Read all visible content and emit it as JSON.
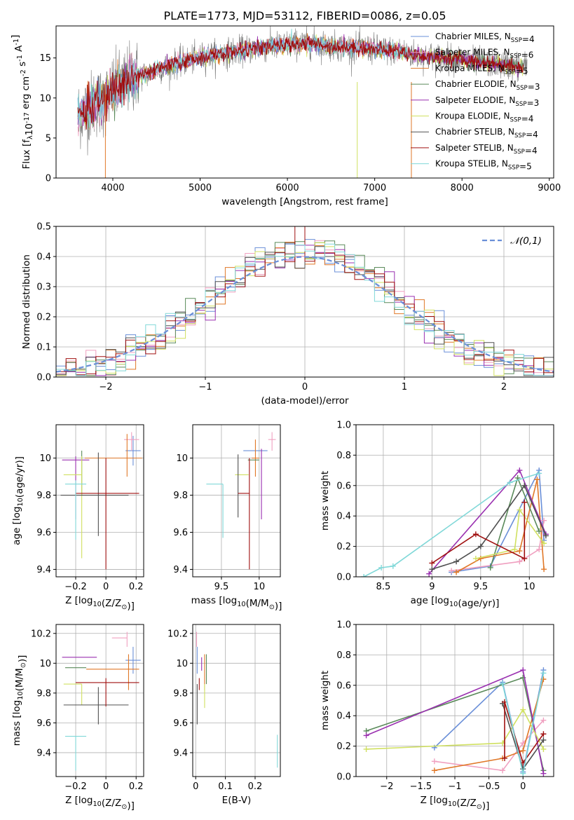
{
  "colors": {
    "chabrier_miles": "#6a8fd8",
    "salpeter_miles": "#f0a0c0",
    "kroupa_miles": "#e07828",
    "chabrier_elodie": "#5a8a5a",
    "salpeter_elodie": "#9a30b0",
    "kroupa_elodie": "#d0e060",
    "chabrier_stelib": "#505050",
    "salpeter_stelib": "#a01010",
    "kroupa_stelib": "#80d8d8",
    "gauss": "#6a8fd8"
  },
  "chart_data": [
    {
      "id": "spectrum",
      "type": "line",
      "title": "PLATE=1773, MJD=53112, FIBERID=0086, z=0.05",
      "xlabel": "wavelength [Angstrom, rest frame]",
      "ylabel": "Flux [f$_\\lambda$10$^{-17}$ erg cm$^{-2}$ s$^{-1}$ A$^{-1}$]",
      "xlim": [
        3350,
        9050
      ],
      "ylim": [
        0,
        19
      ],
      "xticks": [
        4000,
        5000,
        6000,
        7000,
        8000,
        9000
      ],
      "yticks": [
        0,
        5,
        10,
        15
      ],
      "legend": "right",
      "legend_entries": [
        {
          "label": "Chabrier MILES, N$_{SSP}$=4",
          "color": "chabrier_miles"
        },
        {
          "label": "Salpeter MILES, N$_{SSP}$=6",
          "color": "salpeter_miles"
        },
        {
          "label": "Kroupa MILES, N$_{SSP}$=5",
          "color": "kroupa_miles"
        },
        {
          "label": "Chabrier ELODIE, N$_{SSP}$=3",
          "color": "chabrier_elodie"
        },
        {
          "label": "Salpeter ELODIE, N$_{SSP}$=3",
          "color": "salpeter_elodie"
        },
        {
          "label": "Kroupa ELODIE, N$_{SSP}$=4",
          "color": "kroupa_elodie"
        },
        {
          "label": "Chabrier STELIB, N$_{SSP}$=4",
          "color": "chabrier_stelib"
        },
        {
          "label": "Salpeter STELIB, N$_{SSP}$=4",
          "color": "salpeter_stelib"
        },
        {
          "label": "Kroupa STELIB, N$_{SSP}$=5",
          "color": "kroupa_stelib"
        }
      ],
      "data_continuum": {
        "x": [
          3600,
          3700,
          3800,
          3900,
          4000,
          4100,
          4200,
          4300,
          4400,
          4500,
          4700,
          4900,
          5100,
          5300,
          5500,
          5700,
          5900,
          6100,
          6300,
          6500,
          6700,
          6900,
          7100,
          7300,
          7500,
          7700,
          7900,
          8100,
          8300,
          8500,
          8700
        ],
        "y": [
          8,
          8.5,
          9.5,
          9.5,
          11,
          11.5,
          12.5,
          12.8,
          13,
          13.5,
          14.2,
          14.8,
          15.3,
          15.6,
          16,
          16.3,
          16.5,
          16.8,
          16.8,
          16.5,
          16.3,
          16.2,
          16,
          15.8,
          15.3,
          15.1,
          14.9,
          14.6,
          14.4,
          14.1,
          13.9
        ]
      }
    },
    {
      "id": "residuals",
      "type": "histogram",
      "xlabel": "(data-model)/error",
      "ylabel": "Normed distribution",
      "xlim": [
        -2.5,
        2.5
      ],
      "ylim": [
        0,
        0.5
      ],
      "xticks": [
        -2,
        -1,
        0,
        1,
        2
      ],
      "yticks": [
        0.0,
        0.1,
        0.2,
        0.3,
        0.4,
        0.5
      ],
      "grid": true,
      "legend": "top-right",
      "gauss_label": "$\\mathcal{N}(0,1)$",
      "bin_width": 0.1
    },
    {
      "id": "age_vs_Z",
      "type": "errorbar",
      "xlabel": "Z [log$_{10}$(Z/Z$_\\odot$)]",
      "ylabel": "age  [log$_{10}$(age/yr)]",
      "xlim": [
        -0.33,
        0.25
      ],
      "ylim": [
        9.36,
        10.18
      ],
      "xticks": [
        -0.2,
        0.0,
        0.2
      ],
      "yticks": [
        9.4,
        9.6,
        9.8,
        10.0
      ],
      "grid": true,
      "points": [
        {
          "color": "chabrier_miles",
          "x": 0.18,
          "y": 10.04,
          "xerr": [
            0.05,
            0.05
          ],
          "yerr": [
            0.08,
            0.08
          ]
        },
        {
          "color": "salpeter_miles",
          "x": 0.17,
          "y": 10.1,
          "xerr": [
            0.05,
            0.05
          ],
          "yerr": [
            0.06,
            0.04
          ]
        },
        {
          "color": "kroupa_miles",
          "x": 0.14,
          "y": 10.0,
          "xerr": [
            0.28,
            0.1
          ],
          "yerr": [
            0.1,
            0.13
          ]
        },
        {
          "color": "chabrier_elodie",
          "x": -0.16,
          "y": 10.0,
          "xerr": [
            0.0,
            0.0
          ],
          "yerr": [
            0.2,
            0.04
          ]
        },
        {
          "color": "salpeter_elodie",
          "x": -0.2,
          "y": 9.99,
          "xerr": [
            0.09,
            0.09
          ],
          "yerr": [
            0.32,
            0.02
          ]
        },
        {
          "color": "kroupa_elodie",
          "x": -0.16,
          "y": 9.91,
          "xerr": [
            0.12,
            0.0
          ],
          "yerr": [
            0.45,
            0.1
          ]
        },
        {
          "color": "chabrier_stelib",
          "x": -0.05,
          "y": 9.8,
          "xerr": [
            0.25,
            0.2
          ],
          "yerr": [
            0.22,
            0.23
          ]
        },
        {
          "color": "salpeter_stelib",
          "x": 0.0,
          "y": 9.81,
          "xerr": [
            0.2,
            0.22
          ],
          "yerr": [
            0.41,
            0.19
          ]
        },
        {
          "color": "kroupa_stelib",
          "x": -0.2,
          "y": 9.86,
          "xerr": [
            0.07,
            0.07
          ],
          "yerr": [
            0.3,
            0.02
          ]
        }
      ]
    },
    {
      "id": "age_vs_mass",
      "type": "errorbar",
      "xlabel": "mass [log$_{10}$(M/M$_\\odot$)]",
      "ylabel": "",
      "xlim": [
        9.12,
        10.28
      ],
      "ylim": [
        9.36,
        10.18
      ],
      "xticks": [
        9.5,
        10.0
      ],
      "yticks": [
        9.4,
        9.6,
        9.8,
        10.0
      ],
      "grid": true,
      "points": [
        {
          "color": "chabrier_miles",
          "x": 9.95,
          "y": 10.04,
          "xerr": [
            0.16,
            0.16
          ],
          "yerr": [
            0.0,
            0.0
          ]
        },
        {
          "color": "salpeter_miles",
          "x": 10.17,
          "y": 10.1,
          "xerr": [
            0.05,
            0.05
          ],
          "yerr": [
            0.06,
            0.04
          ]
        },
        {
          "color": "kroupa_miles",
          "x": 9.95,
          "y": 10.0,
          "xerr": [
            0.05,
            0.05
          ],
          "yerr": [
            0.1,
            0.1
          ]
        },
        {
          "color": "chabrier_elodie",
          "x": 9.95,
          "y": 9.99,
          "xerr": [
            0.1,
            0.05
          ],
          "yerr": [
            0.0,
            0.0
          ]
        },
        {
          "color": "salpeter_elodie",
          "x": 10.03,
          "y": 9.99,
          "xerr": [
            0.0,
            0.0
          ],
          "yerr": [
            0.32,
            0.06
          ]
        },
        {
          "color": "kroupa_elodie",
          "x": 9.86,
          "y": 9.91,
          "xerr": [
            0.18,
            0.0
          ],
          "yerr": [
            0.0,
            0.0
          ]
        },
        {
          "color": "chabrier_stelib",
          "x": 9.72,
          "y": 9.81,
          "xerr": [
            0.0,
            0.0
          ],
          "yerr": [
            0.13,
            0.21
          ]
        },
        {
          "color": "salpeter_stelib",
          "x": 9.87,
          "y": 9.81,
          "xerr": [
            0.15,
            0.0
          ],
          "yerr": [
            0.41,
            0.19
          ]
        },
        {
          "color": "kroupa_stelib",
          "x": 9.52,
          "y": 9.86,
          "xerr": [
            0.22,
            0.0
          ],
          "yerr": [
            0.29,
            0.0
          ]
        }
      ]
    },
    {
      "id": "weight_vs_age",
      "type": "line",
      "xlabel": "age  [log$_{10}$(age/yr)]",
      "ylabel": "mass weight",
      "xlim": [
        8.22,
        10.25
      ],
      "ylim": [
        0,
        1
      ],
      "xticks": [
        8.5,
        9.0,
        9.5,
        10.0
      ],
      "yticks": [
        0.0,
        0.2,
        0.4,
        0.6,
        0.8,
        1.0
      ],
      "grid": true,
      "series": [
        {
          "color": "chabrier_miles",
          "x": [
            9.2,
            9.6,
            10.1,
            10.15
          ],
          "y": [
            0.03,
            0.07,
            0.7,
            0.24
          ]
        },
        {
          "color": "salpeter_miles",
          "x": [
            9.2,
            9.9,
            10.1,
            10.15
          ],
          "y": [
            0.04,
            0.1,
            0.18,
            0.37
          ]
        },
        {
          "color": "kroupa_miles",
          "x": [
            9.25,
            9.5,
            9.9,
            10.08,
            10.15
          ],
          "y": [
            0.03,
            0.12,
            0.17,
            0.64,
            0.05
          ]
        },
        {
          "color": "chabrier_elodie",
          "x": [
            9.6,
            9.88,
            10.1
          ],
          "y": [
            0.06,
            0.65,
            0.3
          ]
        },
        {
          "color": "salpeter_elodie",
          "x": [
            8.97,
            9.9,
            10.17
          ],
          "y": [
            0.02,
            0.7,
            0.28
          ]
        },
        {
          "color": "kroupa_elodie",
          "x": [
            9.45,
            9.85,
            9.9,
            10.15
          ],
          "y": [
            0.12,
            0.18,
            0.44,
            0.22
          ]
        },
        {
          "color": "chabrier_stelib",
          "x": [
            9.0,
            9.25,
            9.5,
            9.95,
            10.17
          ],
          "y": [
            0.05,
            0.1,
            0.2,
            0.6,
            0.27
          ]
        },
        {
          "color": "salpeter_stelib",
          "x": [
            9.0,
            9.45,
            9.95,
            9.95
          ],
          "y": [
            0.09,
            0.28,
            0.12,
            0.49
          ]
        },
        {
          "color": "kroupa_stelib",
          "x": [
            8.3,
            8.48,
            8.6,
            9.8,
            10.1
          ],
          "y": [
            0.0,
            0.06,
            0.07,
            0.62,
            0.68
          ]
        }
      ]
    },
    {
      "id": "mass_vs_Z",
      "type": "errorbar",
      "xlabel": "Z [log$_{10}$(Z/Z$_\\odot$)]",
      "ylabel": "mass [log$_{10}$(M/M$_\\odot$)]",
      "xlim": [
        -0.33,
        0.25
      ],
      "ylim": [
        9.24,
        10.26
      ],
      "xticks": [
        -0.2,
        0.0,
        0.2
      ],
      "yticks": [
        9.4,
        9.6,
        9.8,
        10.0,
        10.2
      ],
      "grid": true,
      "points": [
        {
          "color": "chabrier_miles",
          "x": 0.18,
          "y": 10.02,
          "xerr": [
            0.05,
            0.05
          ],
          "yerr": [
            0.09,
            0.09
          ]
        },
        {
          "color": "salpeter_miles",
          "x": 0.14,
          "y": 10.17,
          "xerr": [
            0.1,
            0.0
          ],
          "yerr": [
            0.06,
            0.04
          ]
        },
        {
          "color": "kroupa_miles",
          "x": 0.15,
          "y": 9.96,
          "xerr": [
            0.28,
            0.07
          ],
          "yerr": [
            0.14,
            0.1
          ]
        },
        {
          "color": "chabrier_elodie",
          "x": -0.2,
          "y": 9.97,
          "xerr": [
            0.07,
            0.07
          ],
          "yerr": [
            0.0,
            0.0
          ]
        },
        {
          "color": "salpeter_elodie",
          "x": -0.2,
          "y": 10.04,
          "xerr": [
            0.09,
            0.14
          ],
          "yerr": [
            0.0,
            0.0
          ]
        },
        {
          "color": "kroupa_elodie",
          "x": -0.16,
          "y": 9.86,
          "xerr": [
            0.12,
            0.0
          ],
          "yerr": [
            0.14,
            0.0
          ]
        },
        {
          "color": "chabrier_stelib",
          "x": -0.05,
          "y": 9.72,
          "xerr": [
            0.23,
            0.2
          ],
          "yerr": [
            0.13,
            0.12
          ]
        },
        {
          "color": "salpeter_stelib",
          "x": 0.0,
          "y": 9.87,
          "xerr": [
            0.2,
            0.22
          ],
          "yerr": [
            0.16,
            0.03
          ]
        },
        {
          "color": "kroupa_stelib",
          "x": -0.2,
          "y": 9.51,
          "xerr": [
            0.07,
            0.07
          ],
          "yerr": [
            0.23,
            0.0
          ]
        }
      ]
    },
    {
      "id": "mass_vs_ebv",
      "type": "errorbar",
      "xlabel": "E(B-V)",
      "ylabel": "",
      "xlim": [
        -0.01,
        0.285
      ],
      "ylim": [
        9.24,
        10.26
      ],
      "xticks": [
        0.0,
        0.1,
        0.2
      ],
      "yticks": [
        9.4,
        9.6,
        9.8,
        10.0,
        10.2
      ],
      "grid": true,
      "points": [
        {
          "color": "chabrier_miles",
          "x": 0.005,
          "y": 10.02,
          "xerr": [
            0.0,
            0.0
          ],
          "yerr": [
            0.09,
            0.09
          ]
        },
        {
          "color": "salpeter_miles",
          "x": 0.003,
          "y": 10.17,
          "xerr": [
            0.0,
            0.0
          ],
          "yerr": [
            0.06,
            0.04
          ]
        },
        {
          "color": "kroupa_miles",
          "x": 0.03,
          "y": 9.96,
          "xerr": [
            0.0,
            0.0
          ],
          "yerr": [
            0.14,
            0.1
          ]
        },
        {
          "color": "chabrier_elodie",
          "x": 0.036,
          "y": 9.97,
          "xerr": [
            0.0,
            0.0
          ],
          "yerr": [
            0.11,
            0.09
          ]
        },
        {
          "color": "salpeter_elodie",
          "x": 0.02,
          "y": 10.04,
          "xerr": [
            0.0,
            0.0
          ],
          "yerr": [
            0.09,
            0.0
          ]
        },
        {
          "color": "kroupa_elodie",
          "x": 0.03,
          "y": 9.86,
          "xerr": [
            0.0,
            0.0
          ],
          "yerr": [
            0.16,
            0.0
          ]
        },
        {
          "color": "chabrier_stelib",
          "x": 0.005,
          "y": 9.72,
          "xerr": [
            0.0,
            0.0
          ],
          "yerr": [
            0.13,
            0.14
          ]
        },
        {
          "color": "salpeter_stelib",
          "x": 0.012,
          "y": 9.87,
          "xerr": [
            0.0,
            0.0
          ],
          "yerr": [
            0.05,
            0.03
          ]
        },
        {
          "color": "kroupa_stelib",
          "x": 0.275,
          "y": 9.42,
          "xerr": [
            0.0,
            0.0
          ],
          "yerr": [
            0.12,
            0.1
          ]
        }
      ]
    },
    {
      "id": "weight_vs_Z",
      "type": "line",
      "xlabel": "Z [log$_{10}$(Z/Z$_\\odot$)]",
      "ylabel": "mass weight",
      "xlim": [
        -2.45,
        0.45
      ],
      "ylim": [
        0,
        1
      ],
      "xticks": [
        -2.0,
        -1.5,
        -1.0,
        -0.5,
        0.0
      ],
      "yticks": [
        0.0,
        0.2,
        0.4,
        0.6,
        0.8,
        1.0
      ],
      "grid": true,
      "series": [
        {
          "color": "chabrier_miles",
          "x": [
            -1.3,
            -0.3,
            0.0,
            0.3
          ],
          "y": [
            0.19,
            0.62,
            0.03,
            0.7
          ]
        },
        {
          "color": "salpeter_miles",
          "x": [
            -1.3,
            -0.3,
            0.0,
            0.3
          ],
          "y": [
            0.1,
            0.04,
            0.22,
            0.37
          ]
        },
        {
          "color": "kroupa_miles",
          "x": [
            -1.3,
            -0.3,
            0.0,
            0.3
          ],
          "y": [
            0.04,
            0.12,
            0.17,
            0.64
          ]
        },
        {
          "color": "chabrier_elodie",
          "x": [
            -2.3,
            0.0,
            0.3
          ],
          "y": [
            0.3,
            0.65,
            0.04
          ]
        },
        {
          "color": "salpeter_elodie",
          "x": [
            -2.3,
            0.0,
            0.3
          ],
          "y": [
            0.27,
            0.7,
            0.02
          ]
        },
        {
          "color": "kroupa_elodie",
          "x": [
            -2.3,
            -0.3,
            0.0,
            0.3
          ],
          "y": [
            0.18,
            0.22,
            0.44,
            0.18
          ]
        },
        {
          "color": "chabrier_stelib",
          "x": [
            -0.3,
            0.0,
            0.3
          ],
          "y": [
            0.48,
            0.05,
            0.24
          ]
        },
        {
          "color": "salpeter_stelib",
          "x": [
            -0.27,
            -0.27,
            0.0,
            0.3
          ],
          "y": [
            0.12,
            0.49,
            0.09,
            0.28
          ]
        },
        {
          "color": "kroupa_stelib",
          "x": [
            -0.3,
            0.0,
            0.3
          ],
          "y": [
            0.61,
            0.02,
            0.68
          ]
        }
      ]
    }
  ]
}
